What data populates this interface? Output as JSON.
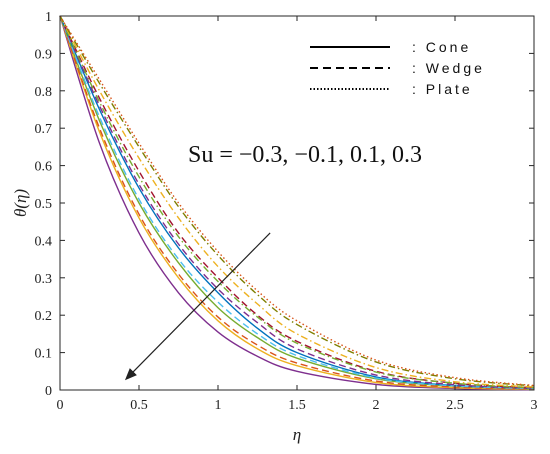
{
  "chart_data": {
    "type": "line",
    "title": "",
    "xlabel": "η",
    "ylabel": "θ(η)",
    "xlim": [
      0,
      3
    ],
    "ylim": [
      0,
      1
    ],
    "xticks": [
      "0",
      "0.5",
      "1",
      "1.5",
      "2",
      "2.5",
      "3"
    ],
    "yticks": [
      "0",
      "0.1",
      "0.2",
      "0.3",
      "0.4",
      "0.5",
      "0.6",
      "0.7",
      "0.8",
      "0.9",
      "1"
    ],
    "grid": false,
    "legend": {
      "placement": "top-right",
      "entries": [
        {
          "label": ": Cone",
          "dash": "solid"
        },
        {
          "label": ": Wedge",
          "dash": "dashed"
        },
        {
          "label": ": Plate",
          "dash": "dotted"
        }
      ]
    },
    "annotation": {
      "text": "Su = −0.3, −0.1, 0.1, 0.3",
      "arrow": {
        "from": [
          1.33,
          0.42
        ],
        "to": [
          0.42,
          0.03
        ]
      }
    },
    "series": [
      {
        "color": "#7e2f8e",
        "dash": "solid",
        "values": [
          [
            0,
            1
          ],
          [
            0.25,
            0.66
          ],
          [
            0.5,
            0.42
          ],
          [
            0.75,
            0.26
          ],
          [
            1,
            0.155
          ],
          [
            1.25,
            0.09
          ],
          [
            1.5,
            0.05
          ],
          [
            2,
            0.015
          ],
          [
            2.5,
            0.004
          ],
          [
            3,
            0.001
          ]
        ]
      },
      {
        "color": "#edb120",
        "dash": "solid",
        "values": [
          [
            0,
            1
          ],
          [
            0.25,
            0.69
          ],
          [
            0.5,
            0.46
          ],
          [
            0.75,
            0.3
          ],
          [
            1,
            0.185
          ],
          [
            1.25,
            0.11
          ],
          [
            1.5,
            0.065
          ],
          [
            2,
            0.02
          ],
          [
            2.5,
            0.006
          ],
          [
            3,
            0.002
          ]
        ]
      },
      {
        "color": "#77ac30",
        "dash": "solid",
        "values": [
          [
            0,
            1
          ],
          [
            0.25,
            0.72
          ],
          [
            0.5,
            0.5
          ],
          [
            0.75,
            0.34
          ],
          [
            1,
            0.22
          ],
          [
            1.25,
            0.14
          ],
          [
            1.5,
            0.085
          ],
          [
            2,
            0.03
          ],
          [
            2.5,
            0.01
          ],
          [
            3,
            0.003
          ]
        ]
      },
      {
        "color": "#0072bd",
        "dash": "solid",
        "values": [
          [
            0,
            1
          ],
          [
            0.25,
            0.75
          ],
          [
            0.5,
            0.54
          ],
          [
            0.75,
            0.38
          ],
          [
            1,
            0.26
          ],
          [
            1.25,
            0.165
          ],
          [
            1.5,
            0.1
          ],
          [
            2,
            0.035
          ],
          [
            2.5,
            0.012
          ],
          [
            3,
            0.004
          ]
        ]
      },
      {
        "color": "#d95319",
        "dash": "dashed",
        "values": [
          [
            0,
            1
          ],
          [
            0.25,
            0.7
          ],
          [
            0.5,
            0.47
          ],
          [
            0.75,
            0.31
          ],
          [
            1,
            0.195
          ],
          [
            1.25,
            0.12
          ],
          [
            1.5,
            0.072
          ],
          [
            2,
            0.024
          ],
          [
            2.5,
            0.008
          ],
          [
            3,
            0.003
          ]
        ]
      },
      {
        "color": "#4dbeee",
        "dash": "dashed",
        "values": [
          [
            0,
            1
          ],
          [
            0.25,
            0.73
          ],
          [
            0.5,
            0.51
          ],
          [
            0.75,
            0.35
          ],
          [
            1,
            0.235
          ],
          [
            1.25,
            0.15
          ],
          [
            1.5,
            0.092
          ],
          [
            2,
            0.032
          ],
          [
            2.5,
            0.011
          ],
          [
            3,
            0.004
          ]
        ]
      },
      {
        "color": "#7e2f8e",
        "dash": "dashed",
        "values": [
          [
            0,
            1
          ],
          [
            0.25,
            0.76
          ],
          [
            0.5,
            0.55
          ],
          [
            0.75,
            0.39
          ],
          [
            1,
            0.27
          ],
          [
            1.25,
            0.18
          ],
          [
            1.5,
            0.11
          ],
          [
            2,
            0.04
          ],
          [
            2.5,
            0.014
          ],
          [
            3,
            0.005
          ]
        ]
      },
      {
        "color": "#a2142f",
        "dash": "dashed",
        "values": [
          [
            0,
            1
          ],
          [
            0.25,
            0.78
          ],
          [
            0.5,
            0.585
          ],
          [
            0.75,
            0.42
          ],
          [
            1,
            0.3
          ],
          [
            1.25,
            0.2
          ],
          [
            1.5,
            0.13
          ],
          [
            2,
            0.05
          ],
          [
            2.5,
            0.018
          ],
          [
            3,
            0.006
          ]
        ]
      },
      {
        "color": "#77ac30",
        "dash": "dashdot",
        "values": [
          [
            0,
            1
          ],
          [
            0.25,
            0.77
          ],
          [
            0.5,
            0.57
          ],
          [
            0.75,
            0.41
          ],
          [
            1,
            0.29
          ],
          [
            1.25,
            0.195
          ],
          [
            1.5,
            0.125
          ],
          [
            2,
            0.048
          ],
          [
            2.5,
            0.018
          ],
          [
            3,
            0.006
          ]
        ]
      },
      {
        "color": "#edb120",
        "dash": "dashdot",
        "values": [
          [
            0,
            1
          ],
          [
            0.25,
            0.8
          ],
          [
            0.5,
            0.62
          ],
          [
            0.75,
            0.46
          ],
          [
            1,
            0.33
          ],
          [
            1.25,
            0.23
          ],
          [
            1.5,
            0.15
          ],
          [
            2,
            0.06
          ],
          [
            2.5,
            0.022
          ],
          [
            3,
            0.008
          ]
        ]
      },
      {
        "color": "#7f7f00",
        "dash": "dashdot",
        "values": [
          [
            0,
            1
          ],
          [
            0.25,
            0.82
          ],
          [
            0.5,
            0.65
          ],
          [
            0.75,
            0.49
          ],
          [
            1,
            0.36
          ],
          [
            1.25,
            0.255
          ],
          [
            1.5,
            0.175
          ],
          [
            2,
            0.075
          ],
          [
            2.5,
            0.03
          ],
          [
            3,
            0.011
          ]
        ]
      },
      {
        "color": "#d95319",
        "dash": "dotted",
        "values": [
          [
            0,
            1
          ],
          [
            0.25,
            0.83
          ],
          [
            0.5,
            0.66
          ],
          [
            0.75,
            0.5
          ],
          [
            1,
            0.37
          ],
          [
            1.25,
            0.265
          ],
          [
            1.5,
            0.185
          ],
          [
            2,
            0.08
          ],
          [
            2.5,
            0.033
          ],
          [
            3,
            0.012
          ]
        ]
      }
    ]
  }
}
